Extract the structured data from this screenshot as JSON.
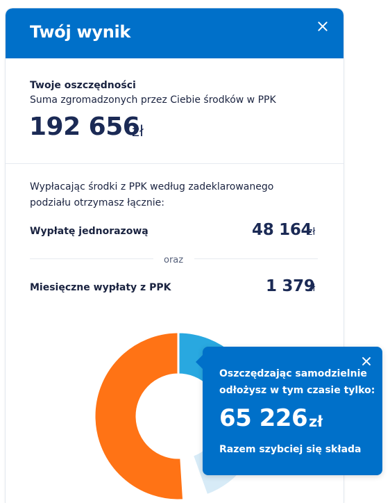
{
  "header": {
    "title": "Twój wynik"
  },
  "savings": {
    "title": "Twoje oszczędności",
    "subtitle": "Suma zgromadzonych przez Ciebie środków w PPK",
    "amount": "192 656",
    "currency": "zł"
  },
  "payout": {
    "intro": "Wypłacając środki z PPK według zadeklarowanego podziału otrzymasz łącznie:",
    "lump_sum": {
      "label": "Wypłatę jednorazową",
      "value": "48 164",
      "currency": "zł"
    },
    "separator": "oraz",
    "monthly": {
      "label": "Miesięczne wypłaty z PPK",
      "value": "1 379",
      "currency": "zł"
    }
  },
  "donut": {
    "segments": [
      {
        "name": "blue",
        "fraction": 0.25,
        "color": "#29a8e0"
      },
      {
        "name": "light-blue",
        "fraction": 0.195,
        "color": "#d7ebf7"
      },
      {
        "name": "white",
        "fraction": 0.045,
        "color": "#ffffff"
      },
      {
        "name": "orange",
        "fraction": 0.51,
        "color": "#ff7315"
      }
    ],
    "gap_color": "#ffffff"
  },
  "popup": {
    "line1": "Oszczędzając samodzielnie",
    "line2": "odłożysz w tym czasie tylko:",
    "amount": "65 226",
    "currency": "zł",
    "footer": "Razem szybciej się składa"
  },
  "colors": {
    "primary": "#0070c9",
    "navy": "#1b2a55",
    "accent_orange": "#ff7315",
    "accent_blue": "#29a8e0"
  }
}
